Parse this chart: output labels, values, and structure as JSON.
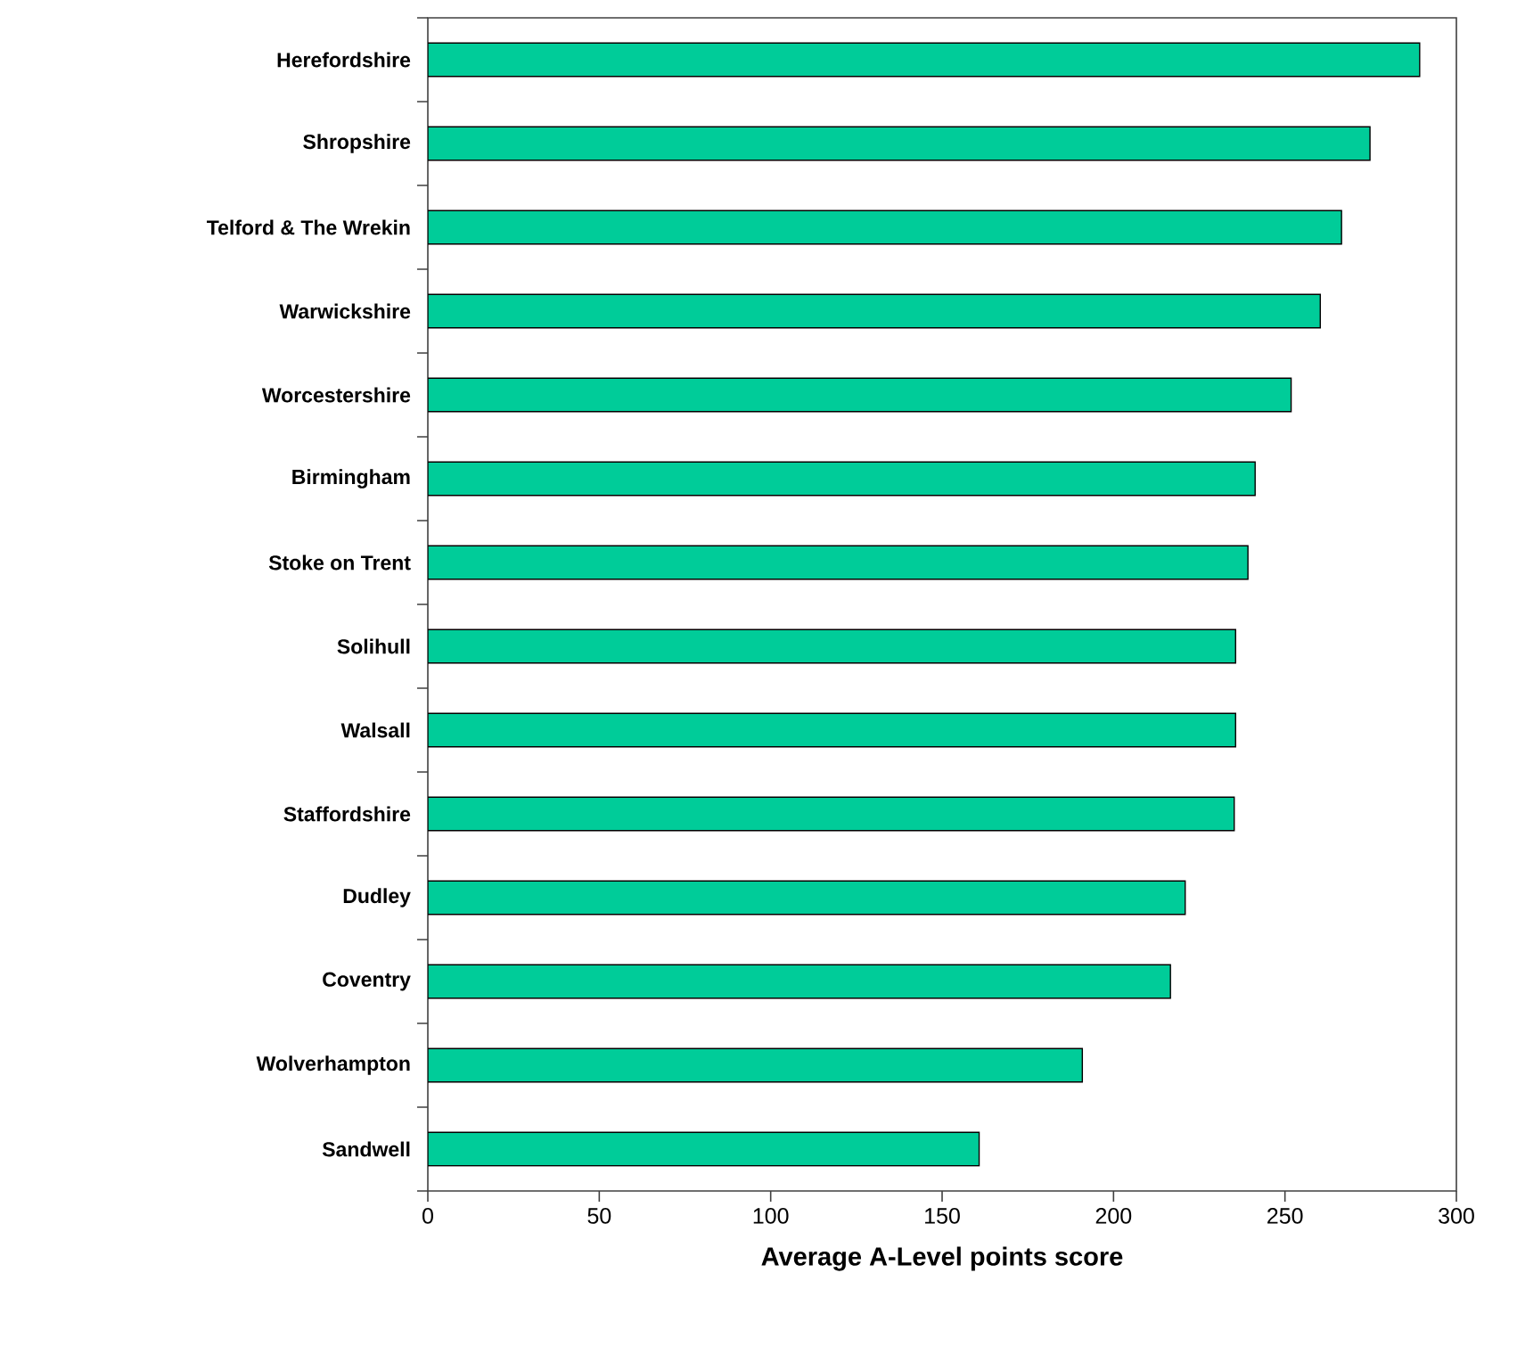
{
  "chart_data": {
    "type": "bar",
    "orientation": "horizontal",
    "xlabel": "Average A-Level points score",
    "categories": [
      "Herefordshire",
      "Shropshire",
      "Telford & The Wrekin",
      "Warwickshire",
      "Worcestershire",
      "Birmingham",
      "Stoke on Trent",
      "Solihull",
      "Walsall",
      "Staffordshire",
      "Dudley",
      "Coventry",
      "Wolverhampton",
      "Sandwell"
    ],
    "values": [
      289.3,
      274.8,
      266.5,
      260.3,
      251.8,
      241.3,
      239.2,
      235.6,
      235.6,
      235.2,
      220.9,
      216.6,
      190.9,
      160.8
    ],
    "color": "#00cc99",
    "xlim": [
      0,
      300
    ],
    "xticks": [
      0,
      50,
      100,
      150,
      200,
      250,
      300
    ]
  }
}
